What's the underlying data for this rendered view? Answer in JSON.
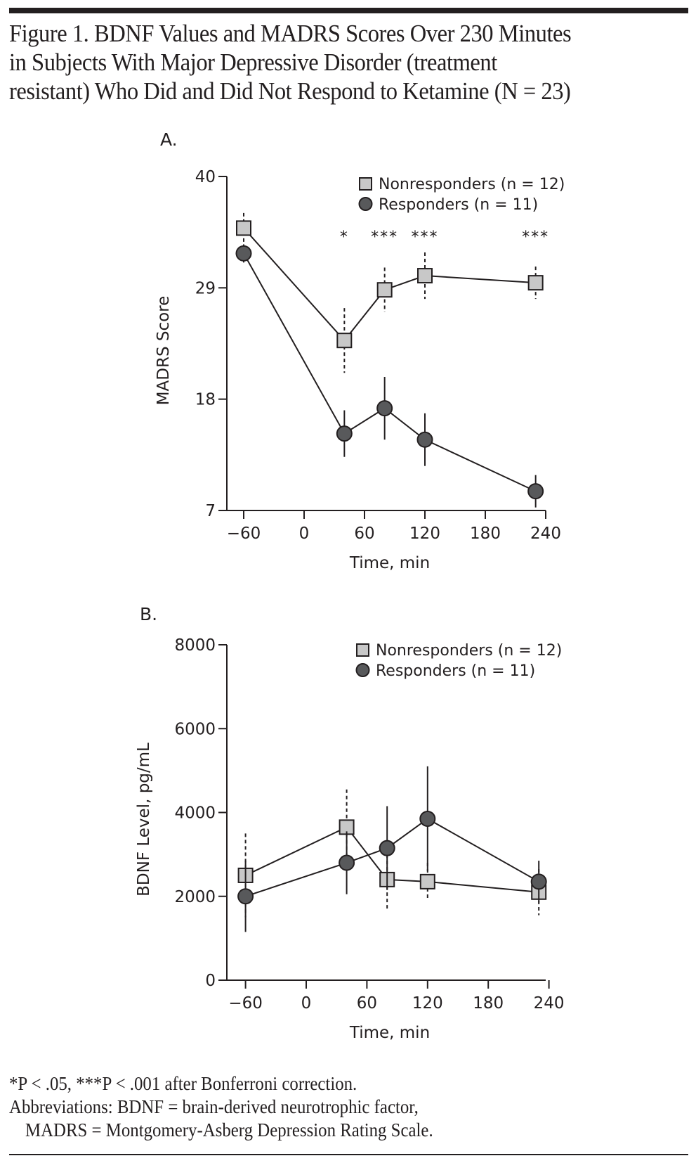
{
  "title_lines": [
    "Figure 1. BDNF Values and MADRS Scores Over 230 Minutes",
    "in Subjects With Major Depressive Disorder (treatment",
    "resistant) Who Did and Did Not Respond to Ketamine (N = 23)"
  ],
  "footnotes": {
    "significance_line": "*P < .05, ***P < .001 after Bonferroni correction.",
    "abbrev_line1": "Abbreviations: BDNF = brain-derived neurotrophic factor,",
    "abbrev_line2": "MADRS = Montgomery-Asberg Depression Rating Scale."
  },
  "colors": {
    "nonresponder_fill": "#c8c8c8",
    "responder_fill": "#58595b",
    "ink": "#231f20"
  },
  "chart_data": [
    {
      "panel_label": "A.",
      "type": "line",
      "title": "",
      "xlabel": "Time, min",
      "ylabel": "MADRS Score",
      "xlim": [
        -75,
        240
      ],
      "ylim": [
        7,
        40
      ],
      "xticks": [
        -60,
        0,
        60,
        120,
        180,
        240
      ],
      "xtick_labels": [
        "−60",
        "0",
        "60",
        "120",
        "180",
        "240"
      ],
      "yticks": [
        7,
        18,
        29,
        40
      ],
      "ytick_labels": [
        "7",
        "18",
        "29",
        "40"
      ],
      "legend_position": "top-right",
      "series": [
        {
          "name": "Nonresponders (n = 12)",
          "marker": "square",
          "error_style": "dashed",
          "x": [
            -60,
            40,
            80,
            120,
            230
          ],
          "values": [
            34.9,
            23.8,
            28.8,
            30.2,
            29.5
          ],
          "errors": [
            1.5,
            3.2,
            2.2,
            2.3,
            1.6
          ]
        },
        {
          "name": "Responders (n = 11)",
          "marker": "circle",
          "error_style": "solid",
          "x": [
            -60,
            40,
            80,
            120,
            230
          ],
          "values": [
            32.4,
            14.6,
            17.1,
            14.0,
            8.9
          ],
          "errors": [
            0.9,
            2.3,
            3.1,
            2.6,
            1.6
          ]
        }
      ],
      "annotations": [
        {
          "x": 40,
          "text": "*"
        },
        {
          "x": 80,
          "text": "***"
        },
        {
          "x": 120,
          "text": "***"
        },
        {
          "x": 230,
          "text": "***"
        }
      ]
    },
    {
      "panel_label": "B.",
      "type": "line",
      "title": "",
      "xlabel": "Time, min",
      "ylabel": "BDNF Level, pg/mL",
      "xlim": [
        -75,
        240
      ],
      "ylim": [
        0,
        8000
      ],
      "xticks": [
        -60,
        0,
        60,
        120,
        180,
        240
      ],
      "xtick_labels": [
        "−60",
        "0",
        "60",
        "120",
        "180",
        "240"
      ],
      "yticks": [
        0,
        2000,
        4000,
        6000,
        8000
      ],
      "ytick_labels": [
        "0",
        "2000",
        "4000",
        "6000",
        "8000"
      ],
      "legend_position": "top-right",
      "series": [
        {
          "name": "Nonresponders (n = 12)",
          "marker": "square",
          "error_style": "dashed",
          "x": [
            -60,
            40,
            80,
            120,
            230
          ],
          "values": [
            2500,
            3650,
            2400,
            2350,
            2100
          ],
          "errors": [
            1000,
            900,
            750,
            450,
            550
          ]
        },
        {
          "name": "Responders (n = 11)",
          "marker": "circle",
          "error_style": "solid",
          "x": [
            -60,
            40,
            80,
            120,
            230
          ],
          "values": [
            2000,
            2800,
            3150,
            3850,
            2350
          ],
          "errors": [
            850,
            750,
            1000,
            1250,
            500
          ]
        }
      ],
      "annotations": []
    }
  ]
}
